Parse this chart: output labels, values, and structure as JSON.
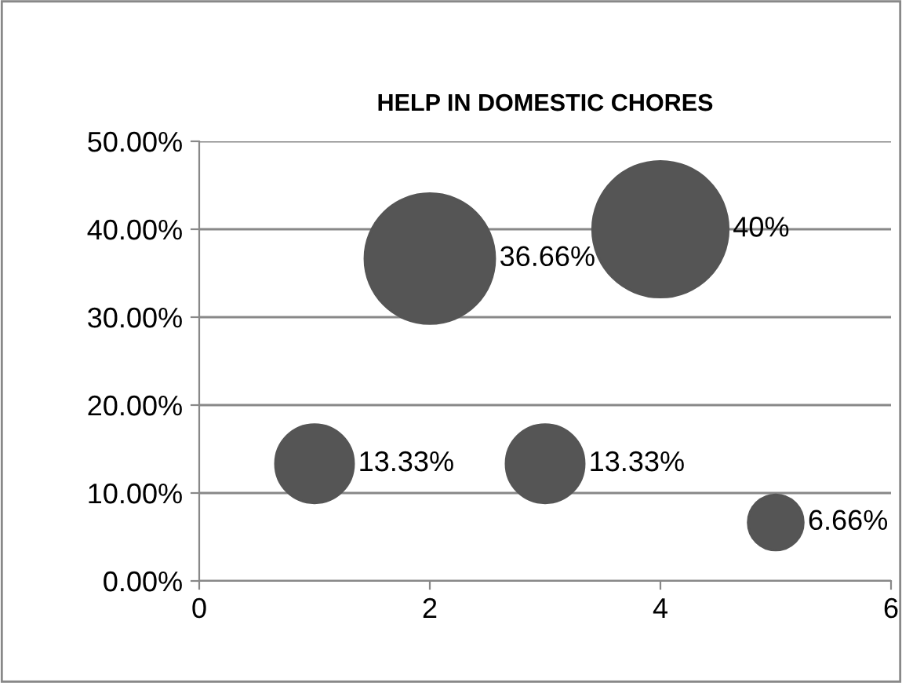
{
  "chart_data": {
    "type": "bubble",
    "title": "HELP IN DOMESTIC CHORES",
    "x": [
      1,
      2,
      3,
      4,
      5
    ],
    "values": [
      13.33,
      36.66,
      13.33,
      40,
      6.66
    ],
    "sizes": [
      0.3333,
      0.9165,
      0.3333,
      1,
      0.1665
    ],
    "value_labels": [
      "13.33%",
      "36.66%",
      "13.33%",
      "40%",
      "6.66%"
    ],
    "color": "#555555",
    "xlim": [
      0,
      6
    ],
    "xticks": [
      0,
      2,
      4,
      6
    ],
    "ylim": [
      0,
      50
    ],
    "yticks": [
      {
        "value": 0,
        "label": "0.00%"
      },
      {
        "value": 10,
        "label": "10.00%"
      },
      {
        "value": 20,
        "label": "20.00%"
      },
      {
        "value": 30,
        "label": "30.00%"
      },
      {
        "value": 40,
        "label": "40.00%"
      },
      {
        "value": 50,
        "label": "50.00%"
      }
    ],
    "grid": "y",
    "legend": false
  }
}
